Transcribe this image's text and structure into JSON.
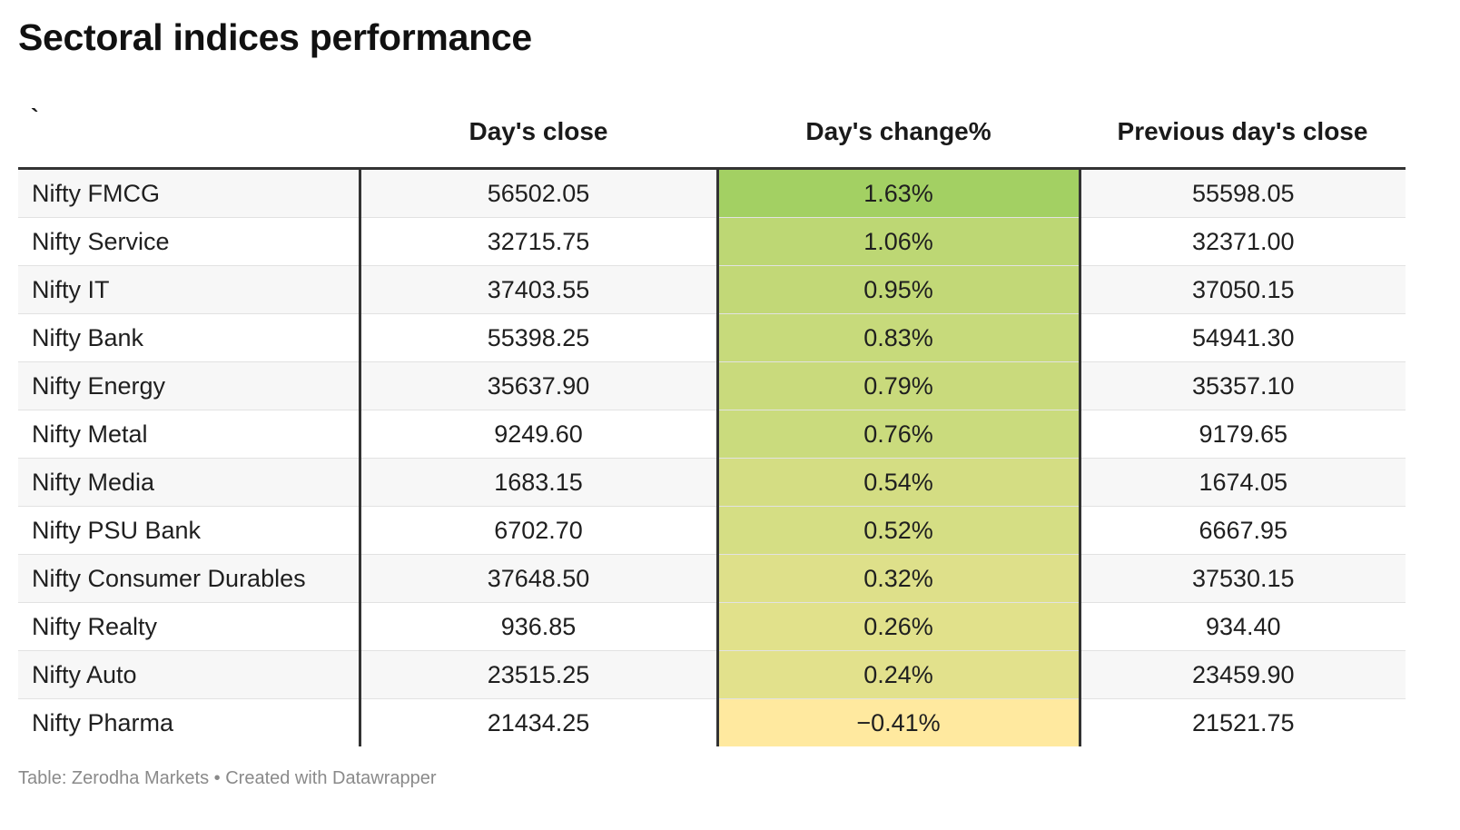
{
  "title": "Sectoral indices performance",
  "footer": "Table: Zerodha Markets • Created with Datawrapper",
  "colors": {
    "scale_high": "#a3d063",
    "scale_low": "#ffe99f",
    "divider": "#333333",
    "row_stripe": "#f7f7f7"
  },
  "chart_data": {
    "type": "table",
    "columns": [
      "`",
      "Day's close",
      "Day's change%",
      "Previous day's close"
    ],
    "rows": [
      {
        "name": "Nifty FMCG",
        "close": "56502.05",
        "change": "1.63%",
        "change_value": 1.63,
        "prev": "55598.05"
      },
      {
        "name": "Nifty Service",
        "close": "32715.75",
        "change": "1.06%",
        "change_value": 1.06,
        "prev": "32371.00"
      },
      {
        "name": "Nifty IT",
        "close": "37403.55",
        "change": "0.95%",
        "change_value": 0.95,
        "prev": "37050.15"
      },
      {
        "name": "Nifty Bank",
        "close": "55398.25",
        "change": "0.83%",
        "change_value": 0.83,
        "prev": "54941.30"
      },
      {
        "name": "Nifty Energy",
        "close": "35637.90",
        "change": "0.79%",
        "change_value": 0.79,
        "prev": "35357.10"
      },
      {
        "name": "Nifty Metal",
        "close": "9249.60",
        "change": "0.76%",
        "change_value": 0.76,
        "prev": "9179.65"
      },
      {
        "name": "Nifty Media",
        "close": "1683.15",
        "change": "0.54%",
        "change_value": 0.54,
        "prev": "1674.05"
      },
      {
        "name": "Nifty PSU Bank",
        "close": "6702.70",
        "change": "0.52%",
        "change_value": 0.52,
        "prev": "6667.95"
      },
      {
        "name": "Nifty Consumer Durables",
        "close": "37648.50",
        "change": "0.32%",
        "change_value": 0.32,
        "prev": "37530.15"
      },
      {
        "name": "Nifty Realty",
        "close": "936.85",
        "change": "0.26%",
        "change_value": 0.26,
        "prev": "934.40"
      },
      {
        "name": "Nifty Auto",
        "close": "23515.25",
        "change": "0.24%",
        "change_value": 0.24,
        "prev": "23459.90"
      },
      {
        "name": "Nifty Pharma",
        "close": "21434.25",
        "change": "−0.41%",
        "change_value": -0.41,
        "prev": "21521.75"
      }
    ]
  }
}
